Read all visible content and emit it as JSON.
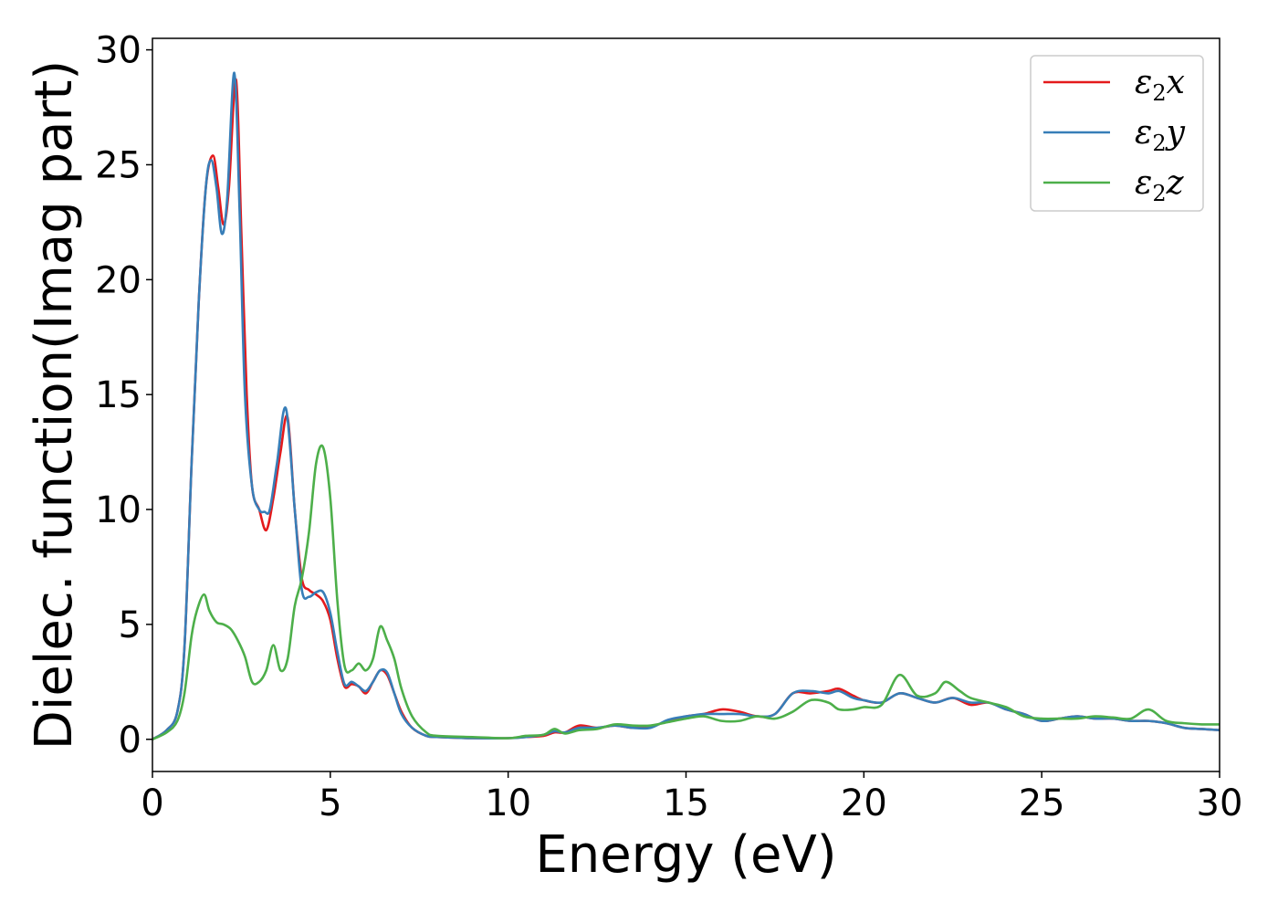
{
  "chart_data": {
    "type": "line",
    "xlabel": "Energy (eV)",
    "ylabel": "Dielec. function(Imag part)",
    "xlim": [
      0,
      30
    ],
    "ylim": [
      -1.4,
      30.5
    ],
    "xticks": [
      0,
      5,
      10,
      15,
      20,
      25,
      30
    ],
    "yticks": [
      0,
      5,
      10,
      15,
      20,
      25,
      30
    ],
    "grid": false,
    "legend_position": "top-right",
    "series": [
      {
        "name": "ε2x",
        "legend": {
          "symbol": "ε",
          "sub": "2",
          "axis": "x"
        },
        "color": "#e41a1c",
        "x": [
          0,
          0.4,
          0.7,
          0.9,
          1.1,
          1.3,
          1.5,
          1.7,
          1.85,
          2.0,
          2.15,
          2.35,
          2.5,
          2.65,
          2.8,
          3.0,
          3.2,
          3.4,
          3.6,
          3.8,
          4.0,
          4.2,
          4.4,
          4.6,
          4.8,
          5.0,
          5.2,
          5.4,
          5.6,
          5.8,
          6.0,
          6.2,
          6.4,
          6.6,
          6.8,
          7.0,
          7.3,
          7.7,
          8.0,
          9.0,
          10.0,
          10.5,
          11.0,
          11.3,
          11.6,
          12.0,
          12.5,
          13.0,
          13.5,
          14.0,
          14.5,
          15.0,
          15.5,
          16.0,
          16.5,
          17.0,
          17.5,
          18.0,
          18.5,
          19.0,
          19.3,
          19.7,
          20.0,
          20.5,
          21.0,
          21.5,
          22.0,
          22.5,
          23.0,
          23.5,
          24.0,
          24.5,
          25.0,
          25.5,
          26.0,
          26.5,
          27.0,
          27.5,
          28.0,
          28.5,
          29.0,
          29.5,
          30.0
        ],
        "y": [
          0,
          0.4,
          1.2,
          4.0,
          12.0,
          19.0,
          24.0,
          25.4,
          24.0,
          22.4,
          24.0,
          28.7,
          22.0,
          15.0,
          11.0,
          10.0,
          9.1,
          10.5,
          12.5,
          14.0,
          10.0,
          7.0,
          6.5,
          6.3,
          6.0,
          5.2,
          3.5,
          2.3,
          2.4,
          2.3,
          2.0,
          2.5,
          3.0,
          2.8,
          2.0,
          1.2,
          0.5,
          0.15,
          0.1,
          0.05,
          0.05,
          0.1,
          0.15,
          0.3,
          0.3,
          0.6,
          0.5,
          0.6,
          0.5,
          0.55,
          0.8,
          1.0,
          1.1,
          1.3,
          1.2,
          1.0,
          1.1,
          2.0,
          2.0,
          2.1,
          2.2,
          1.9,
          1.7,
          1.6,
          2.0,
          1.8,
          1.6,
          1.8,
          1.5,
          1.6,
          1.3,
          1.1,
          0.8,
          0.9,
          1.0,
          0.9,
          0.9,
          0.8,
          0.8,
          0.7,
          0.5,
          0.45,
          0.4
        ]
      },
      {
        "name": "ε2y",
        "legend": {
          "symbol": "ε",
          "sub": "2",
          "axis": "y"
        },
        "color": "#377eb8",
        "x": [
          0,
          0.4,
          0.7,
          0.9,
          1.1,
          1.3,
          1.5,
          1.65,
          1.8,
          1.95,
          2.1,
          2.3,
          2.45,
          2.6,
          2.8,
          3.0,
          3.15,
          3.3,
          3.5,
          3.75,
          4.0,
          4.2,
          4.4,
          4.6,
          4.8,
          5.0,
          5.2,
          5.4,
          5.6,
          5.8,
          6.0,
          6.2,
          6.4,
          6.6,
          6.8,
          7.0,
          7.3,
          7.7,
          8.0,
          9.0,
          10.0,
          10.5,
          11.0,
          11.3,
          11.6,
          12.0,
          12.5,
          13.0,
          13.5,
          14.0,
          14.5,
          15.0,
          15.5,
          16.0,
          16.5,
          17.0,
          17.5,
          18.0,
          18.5,
          19.0,
          19.3,
          19.7,
          20.0,
          20.5,
          21.0,
          21.5,
          22.0,
          22.5,
          23.0,
          23.5,
          24.0,
          24.5,
          25.0,
          25.5,
          26.0,
          26.5,
          27.0,
          27.5,
          28.0,
          28.5,
          29.0,
          29.5,
          30.0
        ],
        "y": [
          0,
          0.4,
          1.2,
          4.0,
          12.0,
          19.0,
          24.0,
          25.2,
          24.0,
          22.0,
          23.5,
          29.0,
          23.0,
          15.0,
          11.0,
          10.0,
          9.9,
          10.0,
          12.0,
          14.4,
          10.0,
          6.5,
          6.2,
          6.4,
          6.4,
          5.5,
          3.8,
          2.4,
          2.5,
          2.3,
          2.1,
          2.5,
          3.0,
          2.9,
          2.0,
          1.1,
          0.5,
          0.15,
          0.1,
          0.05,
          0.05,
          0.1,
          0.2,
          0.35,
          0.3,
          0.5,
          0.5,
          0.6,
          0.5,
          0.5,
          0.85,
          1.0,
          1.1,
          1.1,
          1.1,
          1.0,
          1.1,
          2.0,
          2.1,
          2.0,
          2.1,
          1.8,
          1.7,
          1.6,
          2.0,
          1.8,
          1.6,
          1.8,
          1.6,
          1.6,
          1.3,
          1.1,
          0.8,
          0.9,
          1.0,
          0.9,
          0.9,
          0.8,
          0.8,
          0.7,
          0.5,
          0.45,
          0.4
        ]
      },
      {
        "name": "ε2z",
        "legend": {
          "symbol": "ε",
          "sub": "2",
          "axis": "z"
        },
        "color": "#4daf4a",
        "x": [
          0,
          0.4,
          0.7,
          0.9,
          1.1,
          1.25,
          1.45,
          1.6,
          1.8,
          2.0,
          2.2,
          2.4,
          2.6,
          2.8,
          3.0,
          3.2,
          3.4,
          3.6,
          3.8,
          4.0,
          4.2,
          4.4,
          4.6,
          4.8,
          5.0,
          5.2,
          5.4,
          5.6,
          5.8,
          6.0,
          6.2,
          6.4,
          6.6,
          6.8,
          7.0,
          7.3,
          7.7,
          8.0,
          9.0,
          10.0,
          10.5,
          11.0,
          11.3,
          11.6,
          12.0,
          12.5,
          13.0,
          13.5,
          14.0,
          14.5,
          15.0,
          15.5,
          16.0,
          16.5,
          17.0,
          17.5,
          18.0,
          18.5,
          19.0,
          19.3,
          19.7,
          20.0,
          20.5,
          21.0,
          21.5,
          22.0,
          22.3,
          22.7,
          23.0,
          23.5,
          24.0,
          24.5,
          25.0,
          25.5,
          26.0,
          26.5,
          27.0,
          27.5,
          28.0,
          28.5,
          29.0,
          29.5,
          30.0
        ],
        "y": [
          0,
          0.3,
          0.8,
          2.0,
          4.5,
          5.6,
          6.3,
          5.6,
          5.1,
          5.0,
          4.8,
          4.3,
          3.6,
          2.5,
          2.5,
          3.0,
          4.1,
          3.0,
          3.5,
          5.8,
          7.0,
          9.0,
          12.0,
          12.7,
          10.5,
          6.0,
          3.2,
          3.0,
          3.3,
          3.0,
          3.5,
          4.9,
          4.3,
          3.5,
          2.2,
          1.0,
          0.3,
          0.15,
          0.1,
          0.05,
          0.15,
          0.2,
          0.45,
          0.25,
          0.4,
          0.45,
          0.65,
          0.6,
          0.6,
          0.75,
          0.9,
          1.0,
          0.8,
          0.8,
          1.0,
          0.9,
          1.2,
          1.7,
          1.6,
          1.3,
          1.3,
          1.4,
          1.5,
          2.8,
          1.9,
          2.0,
          2.5,
          2.1,
          1.8,
          1.6,
          1.4,
          1.0,
          0.9,
          0.9,
          0.9,
          1.0,
          0.95,
          0.9,
          1.3,
          0.8,
          0.7,
          0.65,
          0.65
        ]
      }
    ]
  }
}
